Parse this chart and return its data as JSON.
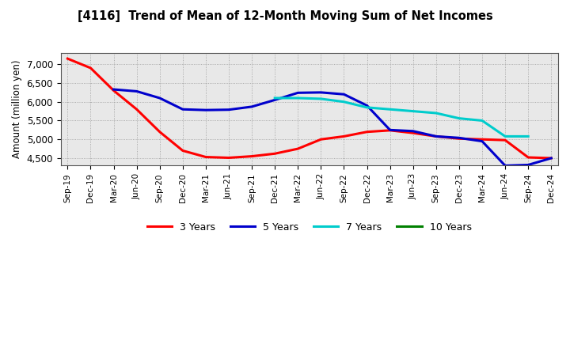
{
  "title": "[4116]  Trend of Mean of 12-Month Moving Sum of Net Incomes",
  "ylabel": "Amount (million yen)",
  "background_color": "#ffffff",
  "x_labels": [
    "Sep-19",
    "Dec-19",
    "Mar-20",
    "Jun-20",
    "Sep-20",
    "Dec-20",
    "Mar-21",
    "Jun-21",
    "Sep-21",
    "Dec-21",
    "Mar-22",
    "Jun-22",
    "Sep-22",
    "Dec-22",
    "Mar-23",
    "Jun-23",
    "Sep-23",
    "Dec-23",
    "Mar-24",
    "Jun-24",
    "Sep-24",
    "Dec-24"
  ],
  "ylim": [
    4300,
    7300
  ],
  "yticks": [
    4500,
    5000,
    5500,
    6000,
    6500,
    7000
  ],
  "series": [
    {
      "name": "3 Years",
      "color": "#ff0000",
      "linewidth": 2.2,
      "data_x": [
        0,
        1,
        2,
        3,
        4,
        5,
        6,
        7,
        8,
        9,
        10,
        11,
        12,
        13,
        14,
        15,
        16,
        17,
        18,
        19,
        20,
        21
      ],
      "data_y": [
        7150,
        6900,
        6300,
        5800,
        5200,
        4700,
        4530,
        4510,
        4550,
        4620,
        4750,
        5000,
        5080,
        5200,
        5240,
        5170,
        5080,
        5020,
        5000,
        4980,
        4520,
        4500
      ]
    },
    {
      "name": "5 Years",
      "color": "#0000cc",
      "linewidth": 2.2,
      "data_x": [
        2,
        3,
        4,
        5,
        6,
        7,
        8,
        9,
        10,
        11,
        12,
        13,
        14,
        15,
        16,
        17,
        18,
        19,
        20,
        21
      ],
      "data_y": [
        6330,
        6280,
        6100,
        5800,
        5780,
        5790,
        5870,
        6050,
        6240,
        6250,
        6200,
        5900,
        5250,
        5220,
        5080,
        5040,
        4950,
        4300,
        4320,
        4500
      ]
    },
    {
      "name": "7 Years",
      "color": "#00cccc",
      "linewidth": 2.2,
      "data_x": [
        9,
        10,
        11,
        12,
        13,
        14,
        15,
        16,
        17,
        18,
        19,
        20
      ],
      "data_y": [
        6100,
        6100,
        6080,
        6000,
        5850,
        5800,
        5750,
        5700,
        5560,
        5500,
        5080,
        5080
      ]
    },
    {
      "name": "10 Years",
      "color": "#008000",
      "linewidth": 2.2,
      "data_x": [],
      "data_y": []
    }
  ],
  "legend_labels": [
    "3 Years",
    "5 Years",
    "7 Years",
    "10 Years"
  ],
  "legend_colors": [
    "#ff0000",
    "#0000cc",
    "#00cccc",
    "#008000"
  ]
}
